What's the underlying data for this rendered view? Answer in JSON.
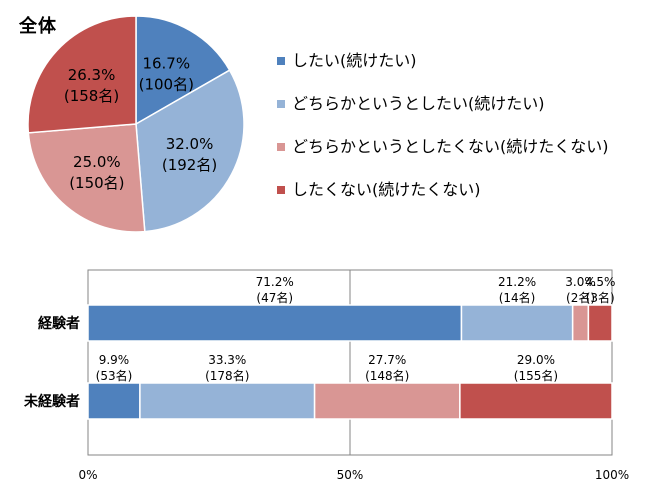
{
  "pie_title": "全体",
  "colors": {
    "series": [
      "#4f81bd",
      "#95b3d7",
      "#d99694",
      "#c0504d"
    ],
    "gridline": "#868686",
    "bar_outline": "#ffffff"
  },
  "legend": [
    {
      "label": "したい(続けたい)"
    },
    {
      "label": "どちらかというとしたい(続けたい)"
    },
    {
      "label": "どちらかというとしたくない(続けたくない)"
    },
    {
      "label": "したくない(続けたくない)"
    }
  ],
  "chart_data": [
    {
      "type": "pie",
      "title": "全体",
      "start_angle_deg": 0,
      "direction": "clockwise",
      "slices": [
        {
          "series": "したい(続けたい)",
          "value": 16.7,
          "pct_label": "16.7%",
          "n_label": "(100名)"
        },
        {
          "series": "どちらかというとしたい(続けたい)",
          "value": 32.0,
          "pct_label": "32.0%",
          "n_label": "(192名)"
        },
        {
          "series": "どちらかというとしたくない(続けたくない)",
          "value": 25.0,
          "pct_label": "25.0%",
          "n_label": "(150名)"
        },
        {
          "series": "したくない(続けたくない)",
          "value": 26.3,
          "pct_label": "26.3%",
          "n_label": "(158名)"
        }
      ]
    },
    {
      "type": "bar",
      "orientation": "horizontal",
      "stacked": "percent",
      "categories": [
        "経験者",
        "未経験者"
      ],
      "xlim": [
        0,
        100
      ],
      "xticks": [
        {
          "value": 0,
          "label": "0%"
        },
        {
          "value": 50,
          "label": "50%"
        },
        {
          "value": 100,
          "label": "100%"
        }
      ],
      "grid": true,
      "series": [
        {
          "name": "したい(続けたい)",
          "values": [
            71.2,
            9.9
          ],
          "pct_labels": [
            "71.2%",
            "9.9%"
          ],
          "n_labels": [
            "(47名)",
            "(53名)"
          ]
        },
        {
          "name": "どちらかというとしたい(続けたい)",
          "values": [
            21.2,
            33.3
          ],
          "pct_labels": [
            "21.2%",
            "33.3%"
          ],
          "n_labels": [
            "(14名)",
            "(178名)"
          ]
        },
        {
          "name": "どちらかというとしたくない(続けたくない)",
          "values": [
            3.0,
            27.7
          ],
          "pct_labels": [
            "3.0%",
            "27.7%"
          ],
          "n_labels": [
            "(2名)",
            "(148名)"
          ]
        },
        {
          "name": "したくない(続けたくない)",
          "values": [
            4.5,
            29.0
          ],
          "pct_labels": [
            "4.5%",
            "29.0%"
          ],
          "n_labels": [
            "(3名)",
            "(155名)"
          ]
        }
      ]
    }
  ]
}
